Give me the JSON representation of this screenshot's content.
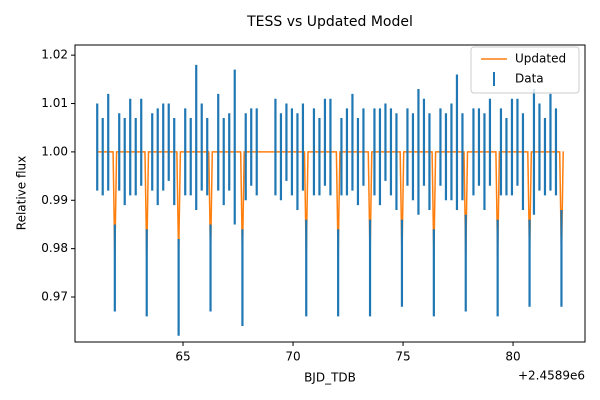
{
  "chart_data": {
    "type": "errorbar",
    "title": "TESS vs Updated Model",
    "xlabel": "BJD_TDB",
    "ylabel": "Relative flux",
    "x_offset_label": "+2.4589e6",
    "xlim": [
      60.09,
      83.27
    ],
    "ylim": [
      0.9607,
      1.0221
    ],
    "xticks": [
      65,
      70,
      75,
      80
    ],
    "yticks": [
      0.97,
      0.98,
      0.99,
      {
        "value": 1,
        "label": "1.00"
      },
      1.01,
      1.02
    ],
    "legend": "upper right",
    "series": [
      {
        "name": "Updated",
        "type": "line",
        "color": "#ff7f0e",
        "x": [
          61.1,
          61.82,
          61.9,
          61.98,
          63.27,
          63.35,
          63.43,
          64.72,
          64.8,
          64.88,
          66.17,
          66.25,
          66.33,
          67.62,
          67.7,
          67.78,
          70.52,
          70.6,
          70.68,
          71.97,
          72.05,
          72.13,
          73.42,
          73.5,
          73.58,
          74.87,
          74.95,
          75.03,
          76.32,
          76.4,
          76.48,
          77.77,
          77.85,
          77.93,
          79.22,
          79.3,
          79.38,
          80.67,
          80.75,
          80.83,
          82.12,
          82.2,
          82.28,
          82.3
        ],
        "values": [
          1,
          1,
          0.978,
          1,
          1,
          0.978,
          1,
          1,
          0.978,
          1,
          1,
          0.978,
          1,
          1,
          0.978,
          1,
          1,
          0.978,
          1,
          1,
          0.978,
          1,
          1,
          0.978,
          1,
          1,
          0.978,
          1,
          1,
          0.978,
          1,
          1,
          0.978,
          1,
          1,
          0.978,
          1,
          1,
          0.978,
          1,
          1,
          0.978,
          1,
          1
        ]
      },
      {
        "name": "Data",
        "type": "errorbar",
        "color": "#1f77b4",
        "x": [
          61.1,
          61.35,
          61.6,
          61.9,
          62.1,
          62.35,
          62.6,
          62.85,
          63.1,
          63.35,
          63.6,
          63.85,
          64.1,
          64.35,
          64.6,
          64.8,
          65.1,
          65.35,
          65.6,
          65.85,
          66.1,
          66.25,
          66.6,
          66.85,
          67.1,
          67.35,
          67.7,
          67.85,
          68.1,
          68.35,
          69.2,
          69.45,
          69.7,
          69.95,
          70.2,
          70.45,
          70.6,
          70.95,
          71.2,
          71.45,
          71.7,
          72.05,
          72.2,
          72.45,
          72.7,
          72.95,
          73.2,
          73.5,
          73.7,
          73.95,
          74.2,
          74.45,
          74.7,
          74.95,
          75.2,
          75.45,
          75.7,
          75.95,
          76.2,
          76.4,
          76.7,
          76.95,
          77.2,
          77.45,
          77.7,
          77.85,
          78.2,
          78.45,
          78.7,
          78.95,
          79.3,
          79.45,
          79.7,
          79.95,
          80.2,
          80.45,
          80.75,
          80.95,
          81.2,
          81.45,
          81.7,
          81.95,
          82.2
        ],
        "values": [
          1.001,
          0.999,
          1.002,
          0.976,
          1.0,
          0.998,
          1.001,
          0.999,
          1.002,
          0.975,
          1.0,
          0.999,
          1.001,
          1.002,
          0.998,
          0.972,
          1.0,
          0.999,
          1.003,
          1.001,
          0.999,
          0.976,
          1.002,
          0.998,
          1.0,
          1.001,
          0.974,
          0.999,
          1.001,
          1.0,
          1.001,
          0.999,
          1.002,
          1.0,
          0.998,
          1.001,
          0.976,
          1.0,
          0.999,
          1.002,
          1.001,
          0.975,
          0.999,
          1.0,
          1.002,
          0.998,
          1.001,
          0.976,
          1.0,
          0.999,
          1.002,
          1.0,
          0.998,
          0.977,
          1.001,
          0.999,
          1.0,
          1.002,
          0.998,
          0.975,
          1.001,
          0.999,
          1.0,
          1.002,
          0.999,
          0.977,
          1.0,
          1.001,
          0.998,
          1.002,
          0.976,
          1.0,
          0.999,
          1.001,
          1.002,
          0.998,
          0.977,
          1.0,
          1.001,
          0.999,
          1.002,
          1.0,
          0.978
        ],
        "errors": [
          0.009,
          0.008,
          0.01,
          0.009,
          0.008,
          0.009,
          0.01,
          0.008,
          0.009,
          0.009,
          0.008,
          0.01,
          0.009,
          0.008,
          0.009,
          0.01,
          0.009,
          0.008,
          0.015,
          0.009,
          0.008,
          0.009,
          0.01,
          0.009,
          0.008,
          0.016,
          0.01,
          0.009,
          0.008,
          0.009,
          0.01,
          0.009,
          0.008,
          0.009,
          0.01,
          0.009,
          0.01,
          0.009,
          0.008,
          0.009,
          0.01,
          0.009,
          0.008,
          0.009,
          0.01,
          0.009,
          0.008,
          0.01,
          0.009,
          0.01,
          0.008,
          0.009,
          0.01,
          0.009,
          0.008,
          0.009,
          0.013,
          0.009,
          0.01,
          0.009,
          0.008,
          0.009,
          0.01,
          0.014,
          0.009,
          0.01,
          0.009,
          0.008,
          0.01,
          0.009,
          0.01,
          0.009,
          0.008,
          0.01,
          0.009,
          0.01,
          0.009,
          0.013,
          0.009,
          0.008,
          0.01,
          0.009,
          0.01
        ]
      }
    ]
  }
}
